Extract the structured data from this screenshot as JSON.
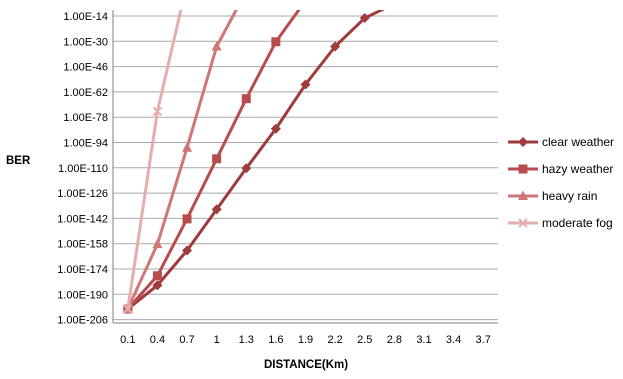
{
  "chart_data": {
    "type": "line",
    "title": "",
    "xlabel": "DISTANCE(Km)",
    "ylabel": "BER",
    "y_scale": "log",
    "categories": [
      "0.1",
      "0.4",
      "0.7",
      "1",
      "1.3",
      "1.6",
      "1.9",
      "2.2",
      "2.5",
      "2.8",
      "3.1",
      "3.4",
      "3.7"
    ],
    "y_ticks": [
      "1.00E-14",
      "1.00E-30",
      "1.00E-46",
      "1.00E-62",
      "1.00E-78",
      "1.00E-94",
      "1.00E-110",
      "1.00E-126",
      "1.00E-142",
      "1.00E-158",
      "1.00E-174",
      "1.00E-190",
      "1.00E-206"
    ],
    "y_exponent_range": [
      -206,
      -6
    ],
    "grid": true,
    "legend_position": "right",
    "series": [
      {
        "name": "clear weather",
        "marker": "diamond",
        "color": "#9e3b3b",
        "y_exponent": [
          -206,
          -191,
          -169,
          -143,
          -117,
          -92,
          -64,
          -40,
          -22,
          -13,
          -7,
          -4,
          0
        ]
      },
      {
        "name": "hazy weather",
        "marker": "square",
        "color": "#b84c4c",
        "y_exponent": [
          -206,
          -185,
          -149,
          -111,
          -73,
          -37,
          -11,
          -3
        ]
      },
      {
        "name": "heavy rain",
        "marker": "triangle",
        "color": "#cf7676",
        "y_exponent": [
          -206,
          -165,
          -104,
          -40,
          -5,
          0
        ]
      },
      {
        "name": "moderate fog",
        "marker": "x",
        "color": "#e4aeae",
        "y_exponent": [
          -206,
          -81,
          0
        ]
      }
    ]
  }
}
